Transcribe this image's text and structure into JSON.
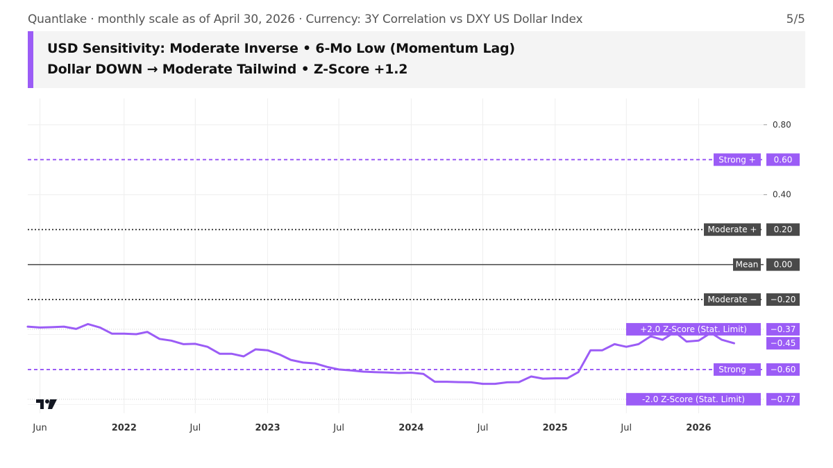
{
  "header": {
    "source_line": "Quantlake · monthly scale as of April 30, 2026 · Currency: 3Y Correlation vs DXY US Dollar Index",
    "page": "5/5"
  },
  "banner": {
    "line1": "USD Sensitivity: Moderate Inverse • 6-Mo Low (Momentum Lag)",
    "line2": "Dollar DOWN → Moderate Tailwind • Z-Score +1.2"
  },
  "colors": {
    "series": "#9b5cf6",
    "strong": "#9b5cf6",
    "moderate": "#444444",
    "mean": "#444444"
  },
  "chart_data": {
    "type": "line",
    "ylim": [
      -0.85,
      0.95
    ],
    "y_ticks": [
      "0.80",
      "0.40"
    ],
    "x_ticks": [
      "Jun",
      "2022",
      "Jul",
      "2023",
      "Jul",
      "2024",
      "Jul",
      "2025",
      "Jul",
      "2026"
    ],
    "x_tick_dates": [
      "2021-06-01",
      "2022-01-01",
      "2022-07-01",
      "2023-01-01",
      "2023-07-01",
      "2024-01-01",
      "2024-07-01",
      "2025-01-01",
      "2025-07-01",
      "2026-01-01"
    ],
    "x_range": [
      "2021-05-01",
      "2026-06-15"
    ],
    "grid": true,
    "series": [
      {
        "x": [
          "2021-05-01",
          "2021-06-01",
          "2021-07-01",
          "2021-08-01",
          "2021-09-01",
          "2021-10-01",
          "2021-11-01",
          "2021-12-01",
          "2022-01-01",
          "2022-02-01",
          "2022-03-01",
          "2022-04-01",
          "2022-05-01",
          "2022-06-01",
          "2022-07-01",
          "2022-08-01",
          "2022-09-01",
          "2022-10-01",
          "2022-11-01",
          "2022-12-01",
          "2023-01-01",
          "2023-02-01",
          "2023-03-01",
          "2023-04-01",
          "2023-05-01",
          "2023-06-01",
          "2023-07-01",
          "2023-08-01",
          "2023-09-01",
          "2023-10-01",
          "2023-11-01",
          "2023-12-01",
          "2024-01-01",
          "2024-02-01",
          "2024-03-01",
          "2024-04-01",
          "2024-05-01",
          "2024-06-01",
          "2024-07-01",
          "2024-08-01",
          "2024-09-01",
          "2024-10-01",
          "2024-11-01",
          "2024-12-01",
          "2025-01-01",
          "2025-02-01",
          "2025-03-01",
          "2025-04-01",
          "2025-05-01",
          "2025-06-01",
          "2025-07-01",
          "2025-08-01",
          "2025-09-01",
          "2025-10-01",
          "2025-11-01",
          "2025-12-01",
          "2026-01-01",
          "2026-02-01",
          "2026-03-01",
          "2026-04-01"
        ],
        "values": [
          -0.355,
          -0.36,
          -0.358,
          -0.355,
          -0.368,
          -0.34,
          -0.36,
          -0.395,
          -0.395,
          -0.398,
          -0.385,
          -0.425,
          -0.435,
          -0.455,
          -0.453,
          -0.47,
          -0.51,
          -0.51,
          -0.525,
          -0.485,
          -0.49,
          -0.515,
          -0.545,
          -0.56,
          -0.565,
          -0.585,
          -0.6,
          -0.605,
          -0.612,
          -0.615,
          -0.617,
          -0.62,
          -0.618,
          -0.625,
          -0.67,
          -0.67,
          -0.672,
          -0.673,
          -0.682,
          -0.682,
          -0.673,
          -0.672,
          -0.64,
          -0.652,
          -0.65,
          -0.65,
          -0.615,
          -0.49,
          -0.49,
          -0.455,
          -0.47,
          -0.455,
          -0.41,
          -0.43,
          -0.385,
          -0.44,
          -0.435,
          -0.39,
          -0.43,
          -0.45
        ]
      }
    ],
    "reference_lines": [
      {
        "label": "Strong +",
        "value": 0.6,
        "value_text": "0.60",
        "style": "dashed",
        "color": "#9b5cf6"
      },
      {
        "label": "Moderate +",
        "value": 0.2,
        "value_text": "0.20",
        "style": "dotted",
        "color": "#444444"
      },
      {
        "label": "Mean",
        "value": 0.0,
        "value_text": "0.00",
        "style": "solid",
        "color": "#444444"
      },
      {
        "label": "Moderate −",
        "value": -0.2,
        "value_text": "−0.20",
        "style": "dotted",
        "color": "#444444"
      },
      {
        "label": "+2.0 Z-Score (Stat. Limit)",
        "value": -0.37,
        "value_text": "−0.37",
        "style": "dotted-light",
        "color": "#cccccc"
      },
      {
        "label": "Strong −",
        "value": -0.6,
        "value_text": "−0.60",
        "style": "dashed",
        "color": "#9b5cf6"
      },
      {
        "label": "-2.0 Z-Score (Stat. Limit)",
        "value": -0.77,
        "value_text": "−0.77",
        "style": "dotted-light",
        "color": "#cccccc"
      }
    ],
    "last_value": {
      "value": -0.45,
      "text": "−0.45"
    }
  }
}
